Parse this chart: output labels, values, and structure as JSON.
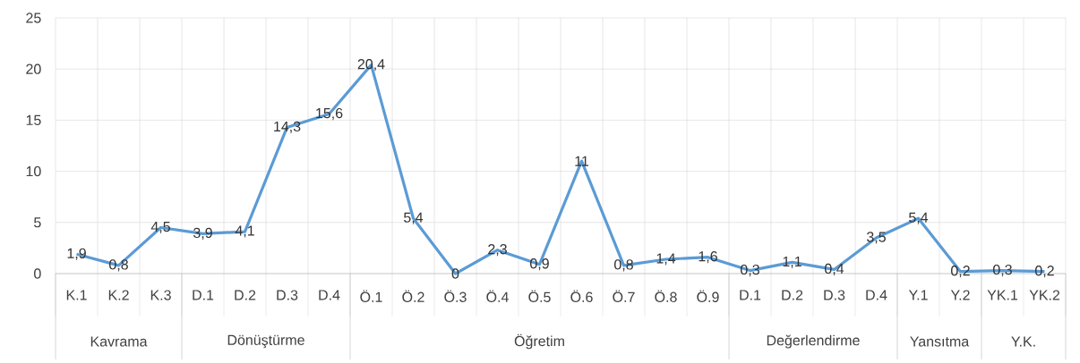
{
  "chart_data": {
    "type": "line",
    "categories": [
      "K.1",
      "K.2",
      "K.3",
      "D.1",
      "D.2",
      "D.3",
      "D.4",
      "Ö.1",
      "Ö.2",
      "Ö.3",
      "Ö.4",
      "Ö.5",
      "Ö.6",
      "Ö.7",
      "Ö.8",
      "Ö.9",
      "D.1",
      "D.2",
      "D.3",
      "D.4",
      "Y.1",
      "Y.2",
      "YK.1",
      "YK.2"
    ],
    "values": [
      1.9,
      0.8,
      4.5,
      3.9,
      4.1,
      14.3,
      15.6,
      20.4,
      5.4,
      0,
      2.3,
      0.9,
      11,
      0.8,
      1.4,
      1.6,
      0.3,
      1.1,
      0.4,
      3.5,
      5.4,
      0.2,
      0.3,
      0.2
    ],
    "value_labels": [
      "1,9",
      "0,8",
      "4,5",
      "3,9",
      "4,1",
      "14,3",
      "15,6",
      "20,4",
      "5,4",
      "0",
      "2,3",
      "0,9",
      "11",
      "0,8",
      "1,4",
      "1,6",
      "0,3",
      "1,1",
      "0,4",
      "3,5",
      "5,4",
      "0,2",
      "0,3",
      "0,2"
    ],
    "color": "#5b9bd5",
    "ylim": [
      0,
      25
    ],
    "yticks": [
      0,
      5,
      10,
      15,
      20,
      25
    ],
    "grid": true,
    "marker": "none",
    "line_style": "solid",
    "annotations": [
      "Kavrama",
      "Dönüştürme",
      "Öğretim",
      "Değerlendirme",
      "Yansıtma",
      "Y.K."
    ]
  }
}
